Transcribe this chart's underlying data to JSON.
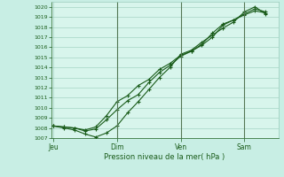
{
  "title": "",
  "xlabel": "Pression niveau de la mer( hPa )",
  "bg_color": "#c8eee4",
  "plot_bg_color": "#d8f5ec",
  "line_color": "#1a5c1a",
  "grid_color": "#99ccbb",
  "tick_color": "#1a5c1a",
  "label_color": "#1a5c1a",
  "ylim": [
    1007,
    1020.5
  ],
  "yticks": [
    1007,
    1008,
    1009,
    1010,
    1011,
    1012,
    1013,
    1014,
    1015,
    1016,
    1017,
    1018,
    1019,
    1020
  ],
  "xtick_labels": [
    "Jeu",
    "Dim",
    "Ven",
    "Sam"
  ],
  "xtick_positions": [
    0.0,
    3.0,
    6.0,
    9.0
  ],
  "xlim": [
    -0.1,
    10.6
  ],
  "series1_x": [
    0,
    0.5,
    1.0,
    1.5,
    2.0,
    2.5,
    3.0,
    3.5,
    4.0,
    4.5,
    5.0,
    5.5,
    6.0,
    6.5,
    7.0,
    7.5,
    8.0,
    8.5,
    9.0,
    9.5,
    10.0
  ],
  "series1_y": [
    1008.2,
    1008.1,
    1008.0,
    1007.8,
    1008.1,
    1009.2,
    1010.6,
    1011.2,
    1012.2,
    1012.8,
    1013.8,
    1014.4,
    1015.2,
    1015.6,
    1016.3,
    1017.4,
    1018.3,
    1018.7,
    1019.3,
    1019.8,
    1019.5
  ],
  "series2_x": [
    0,
    0.5,
    1.0,
    1.5,
    2.0,
    2.5,
    3.0,
    3.5,
    4.0,
    4.5,
    5.0,
    5.5,
    6.0,
    6.5,
    7.0,
    7.5,
    8.0,
    8.5,
    9.0,
    9.5,
    10.0
  ],
  "series2_y": [
    1008.2,
    1008.0,
    1007.8,
    1007.4,
    1007.1,
    1007.5,
    1008.2,
    1009.5,
    1010.6,
    1011.8,
    1013.0,
    1014.0,
    1015.3,
    1015.7,
    1016.5,
    1017.2,
    1017.9,
    1018.5,
    1019.5,
    1020.0,
    1019.3
  ],
  "series3_x": [
    0,
    0.5,
    1.0,
    1.5,
    2.0,
    2.5,
    3.0,
    3.5,
    4.0,
    4.5,
    5.0,
    5.5,
    6.0,
    6.5,
    7.0,
    7.5,
    8.0,
    8.5,
    9.0,
    9.5,
    10.0
  ],
  "series3_y": [
    1008.2,
    1008.1,
    1008.0,
    1007.7,
    1007.9,
    1008.8,
    1009.8,
    1010.7,
    1011.3,
    1012.5,
    1013.5,
    1014.2,
    1015.1,
    1015.6,
    1016.2,
    1017.0,
    1018.2,
    1018.7,
    1019.2,
    1019.6,
    1019.4
  ],
  "vlines_x": [
    3.0,
    6.0,
    9.0
  ],
  "vline_color": "#557755",
  "marker": "+",
  "markersize": 3.5,
  "linewidth": 0.8
}
